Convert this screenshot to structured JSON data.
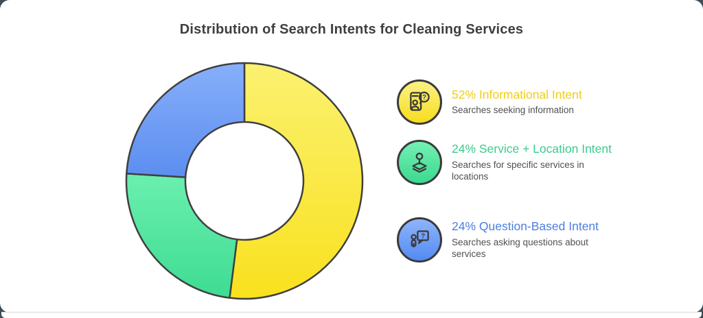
{
  "page": {
    "bg_color": "#3E4D57",
    "card_color": "#FFFFFF"
  },
  "header": {
    "title": "Distribution of Search Intents for Cleaning Services",
    "color": "#3F3F3F"
  },
  "chart_data": {
    "type": "pie",
    "variant": "donut",
    "title": "Distribution of Search Intents for Cleaning Services",
    "categories": [
      "Informational Intent",
      "Service + Location Intent",
      "Question-Based Intent"
    ],
    "values": [
      52,
      24,
      24
    ],
    "unit": "%",
    "start_angle": "top",
    "direction": "clockwise",
    "inner_radius_ratio": 0.5,
    "slice_colors": [
      [
        "#FBF170",
        "#F9E11E"
      ],
      [
        "#6BEFAF",
        "#3EDC92"
      ],
      [
        "#87AFFA",
        "#5C8EF0"
      ]
    ],
    "stroke_color": "#3F3F3F",
    "legend_position": "right"
  },
  "legend": {
    "items": [
      {
        "title": "52% Informational Intent",
        "description": "Searches seeking information",
        "title_color": "#EFCE14",
        "icon": "informational-intent-icon",
        "icon_bg": [
          "#FBF184",
          "#F7DD1E"
        ]
      },
      {
        "title": "24% Service + Location Intent",
        "description": "Searches for specific services in locations",
        "title_color": "#3BCB8C",
        "icon": "service-location-intent-icon",
        "icon_bg": [
          "#74F0B4",
          "#3BD98F"
        ]
      },
      {
        "title": "24% Question-Based Intent",
        "description": "Searches asking questions about services",
        "title_color": "#4C7EE4",
        "icon": "question-based-intent-icon",
        "icon_bg": [
          "#8FB4FA",
          "#538BF4"
        ]
      }
    ]
  }
}
